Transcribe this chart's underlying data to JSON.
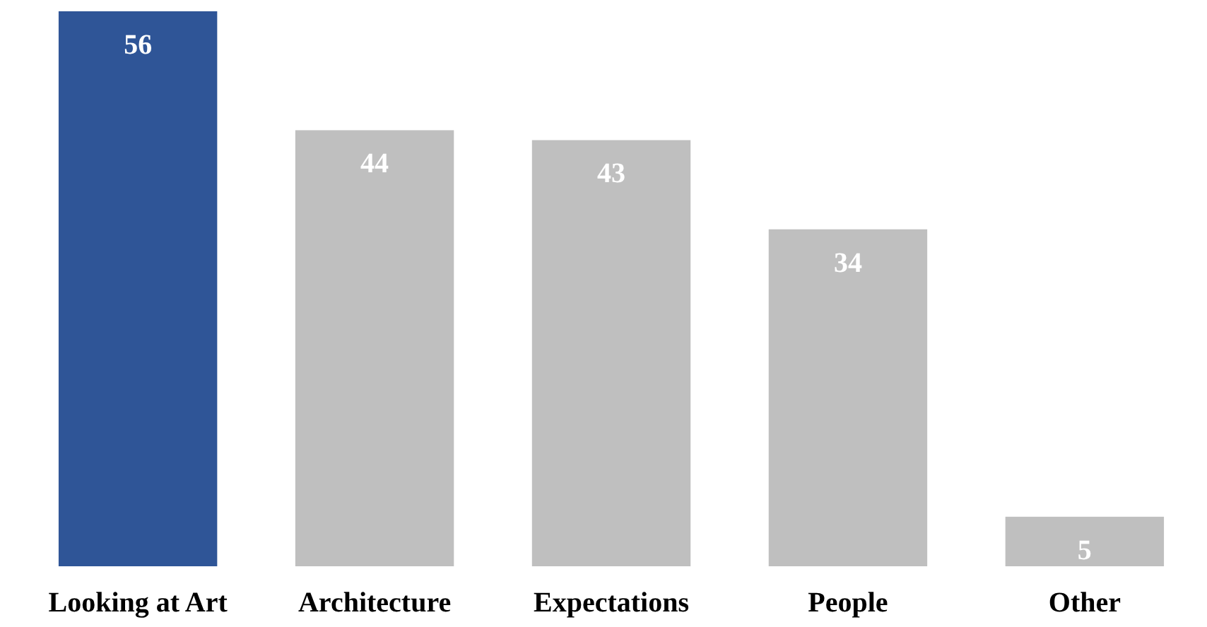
{
  "chart_data": {
    "type": "bar",
    "categories": [
      "Looking at Art",
      "Architecture",
      "Expectations",
      "People",
      "Other"
    ],
    "values": [
      56,
      44,
      43,
      34,
      5
    ],
    "colors": [
      "#2f5597",
      "#bfbfbf",
      "#bfbfbf",
      "#bfbfbf",
      "#bfbfbf"
    ],
    "data_labels": true
  }
}
